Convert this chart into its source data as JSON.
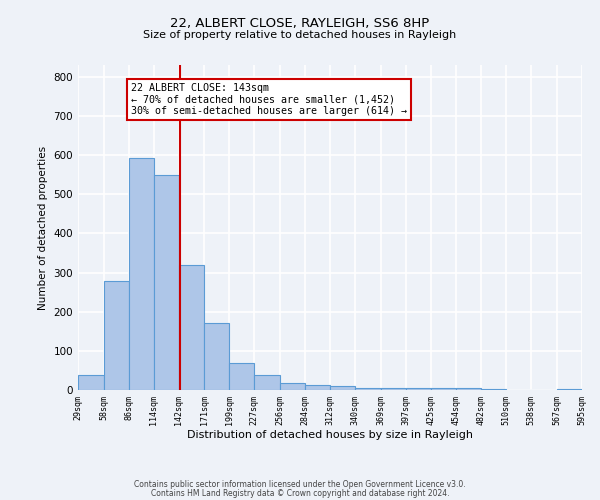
{
  "title1": "22, ALBERT CLOSE, RAYLEIGH, SS6 8HP",
  "title2": "Size of property relative to detached houses in Rayleigh",
  "xlabel": "Distribution of detached houses by size in Rayleigh",
  "ylabel": "Number of detached properties",
  "bar_edges": [
    29,
    58,
    86,
    114,
    142,
    171,
    199,
    227,
    256,
    284,
    312,
    340,
    369,
    397,
    425,
    454,
    482,
    510,
    538,
    567,
    595
  ],
  "bar_heights": [
    38,
    278,
    592,
    550,
    320,
    170,
    68,
    38,
    18,
    12,
    10,
    5,
    5,
    4,
    4,
    4,
    2,
    0,
    0,
    2
  ],
  "bar_color": "#aec6e8",
  "bar_edge_color": "#5b9bd5",
  "property_value": 143,
  "vline_color": "#cc0000",
  "annotation_line1": "22 ALBERT CLOSE: 143sqm",
  "annotation_line2": "← 70% of detached houses are smaller (1,452)",
  "annotation_line3": "30% of semi-detached houses are larger (614) →",
  "annotation_box_color": "#ffffff",
  "annotation_box_edge_color": "#cc0000",
  "ylim": [
    0,
    830
  ],
  "yticks": [
    0,
    100,
    200,
    300,
    400,
    500,
    600,
    700,
    800
  ],
  "tick_labels": [
    "29sqm",
    "58sqm",
    "86sqm",
    "114sqm",
    "142sqm",
    "171sqm",
    "199sqm",
    "227sqm",
    "256sqm",
    "284sqm",
    "312sqm",
    "340sqm",
    "369sqm",
    "397sqm",
    "425sqm",
    "454sqm",
    "482sqm",
    "510sqm",
    "538sqm",
    "567sqm",
    "595sqm"
  ],
  "footer_line1": "Contains HM Land Registry data © Crown copyright and database right 2024.",
  "footer_line2": "Contains public sector information licensed under the Open Government Licence v3.0.",
  "bg_color": "#eef2f8",
  "grid_color": "#ffffff"
}
